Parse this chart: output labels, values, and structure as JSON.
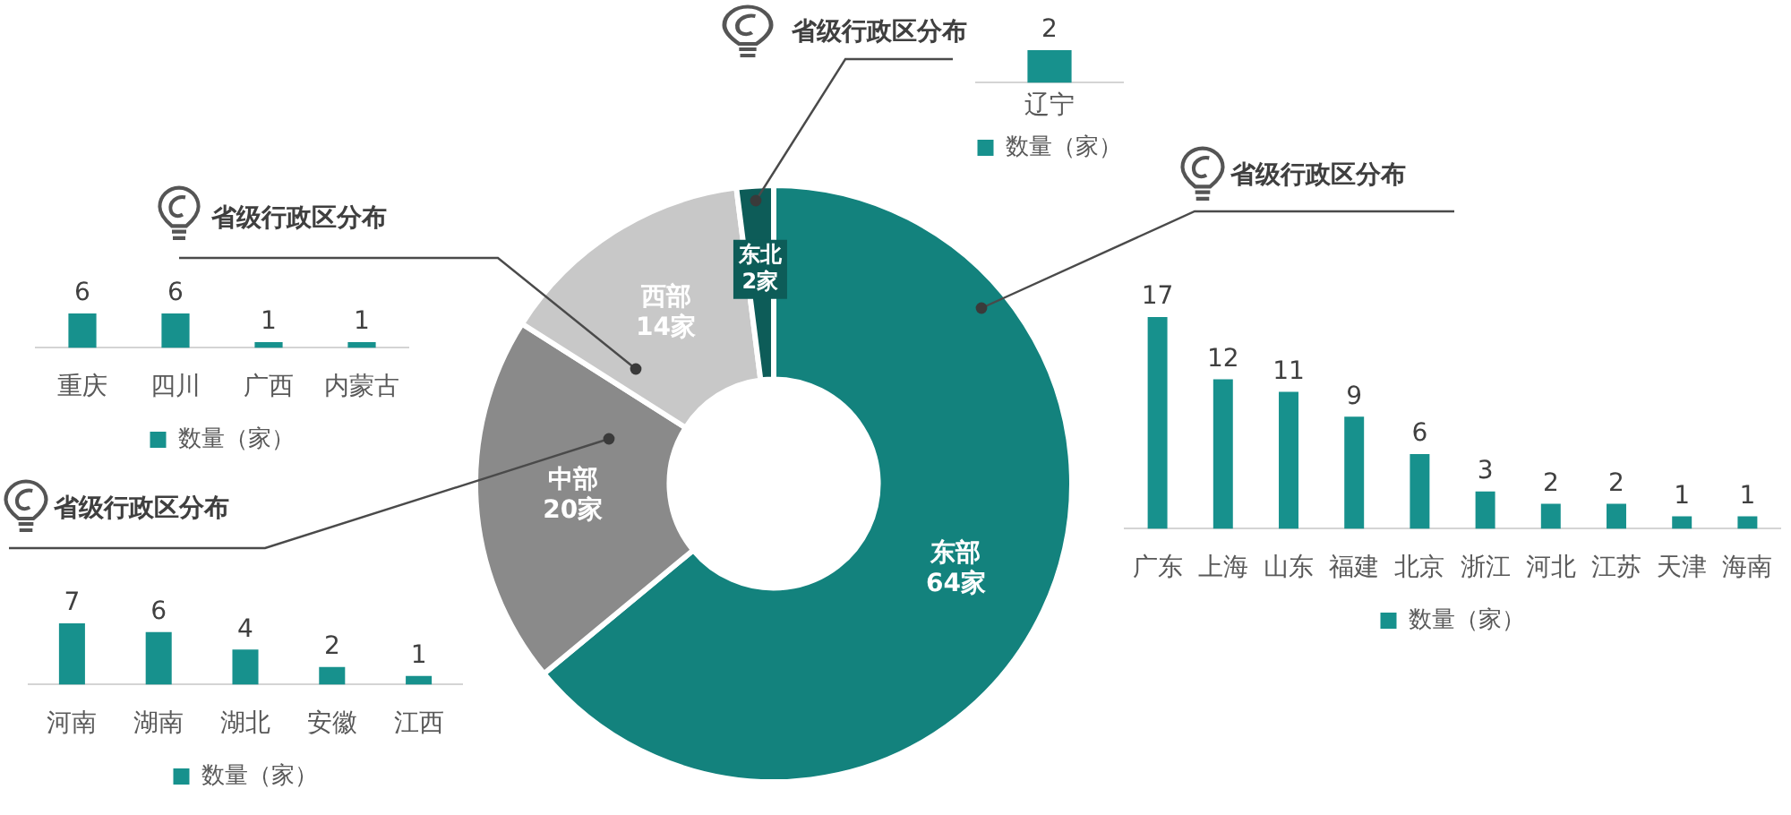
{
  "chart_data": [
    {
      "type": "donut",
      "categories": [
        "东部",
        "中部",
        "西部",
        "东北"
      ],
      "values": [
        64,
        20,
        14,
        2
      ],
      "value_labels": [
        "64家",
        "20家",
        "14家",
        "2家"
      ],
      "colors": [
        "#13827d",
        "#8a8a8a",
        "#c8c8c8",
        "#0d5c58"
      ]
    },
    {
      "type": "bar",
      "title": "省级行政区分布",
      "categories": [
        "辽宁"
      ],
      "series": [
        {
          "name": "数量（家）",
          "color": "#17918d",
          "values": [
            2
          ]
        }
      ],
      "data_labels": true,
      "legend": "bottom"
    },
    {
      "type": "bar",
      "title": "省级行政区分布",
      "categories": [
        "重庆",
        "四川",
        "广西",
        "内蒙古"
      ],
      "series": [
        {
          "name": "数量（家）",
          "color": "#17918d",
          "values": [
            6,
            6,
            1,
            1
          ]
        }
      ],
      "data_labels": true,
      "legend": "bottom"
    },
    {
      "type": "bar",
      "title": "省级行政区分布",
      "categories": [
        "广东",
        "上海",
        "山东",
        "福建",
        "北京",
        "浙江",
        "河北",
        "江苏",
        "天津",
        "海南"
      ],
      "series": [
        {
          "name": "数量（家）",
          "color": "#17918d",
          "values": [
            17,
            12,
            11,
            9,
            6,
            3,
            2,
            2,
            1,
            1
          ]
        }
      ],
      "data_labels": true,
      "legend": "bottom"
    },
    {
      "type": "bar",
      "title": "省级行政区分布",
      "categories": [
        "河南",
        "湖南",
        "湖北",
        "安徽",
        "江西"
      ],
      "series": [
        {
          "name": "数量（家）",
          "color": "#17918d",
          "values": [
            7,
            6,
            4,
            2,
            1
          ]
        }
      ],
      "data_labels": true,
      "legend": "bottom"
    }
  ]
}
